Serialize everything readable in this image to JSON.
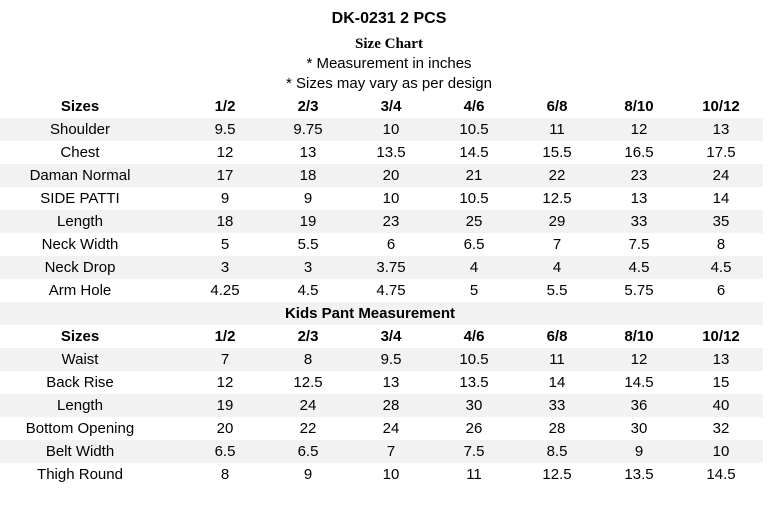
{
  "header": {
    "title": "DK-0231 2 PCS",
    "subtitle": "Size Chart",
    "notes": [
      "* Measurement in inches",
      "* Sizes may vary as per design"
    ]
  },
  "table": {
    "header": [
      "Sizes",
      "1/2",
      "2/3",
      "3/4",
      "4/6",
      "6/8",
      "8/10",
      "10/12"
    ],
    "rows": [
      [
        "Shoulder",
        "9.5",
        "9.75",
        "10",
        "10.5",
        "11",
        "12",
        "13"
      ],
      [
        "Chest",
        "12",
        "13",
        "13.5",
        "14.5",
        "15.5",
        "16.5",
        "17.5"
      ],
      [
        "Daman Normal",
        "17",
        "18",
        "20",
        "21",
        "22",
        "23",
        "24"
      ],
      [
        "SIDE PATTI",
        "9",
        "9",
        "10",
        "10.5",
        "12.5",
        "13",
        "14"
      ],
      [
        "Length",
        "18",
        "19",
        "23",
        "25",
        "29",
        "33",
        "35"
      ],
      [
        "Neck Width",
        "5",
        "5.5",
        "6",
        "6.5",
        "7",
        "7.5",
        "8"
      ],
      [
        "Neck Drop",
        "3",
        "3",
        "3.75",
        "4",
        "4",
        "4.5",
        "4.5"
      ],
      [
        "Arm Hole",
        "4.25",
        "4.5",
        "4.75",
        "5",
        "5.5",
        "5.75",
        "6"
      ]
    ]
  },
  "pant_table": {
    "title": "Kids Pant Measurement",
    "header": [
      "Sizes",
      "1/2",
      "2/3",
      "3/4",
      "4/6",
      "6/8",
      "8/10",
      "10/12"
    ],
    "rows": [
      [
        "Waist",
        "7",
        "8",
        "9.5",
        "10.5",
        "11",
        "12",
        "13"
      ],
      [
        "Back Rise",
        "12",
        "12.5",
        "13",
        "13.5",
        "14",
        "14.5",
        "15"
      ],
      [
        "Length",
        "19",
        "24",
        "28",
        "30",
        "33",
        "36",
        "40"
      ],
      [
        "Bottom Opening",
        "20",
        "22",
        "24",
        "26",
        "28",
        "30",
        "32"
      ],
      [
        "Belt Width",
        "6.5",
        "6.5",
        "7",
        "7.5",
        "8.5",
        "9",
        "10"
      ],
      [
        "Thigh Round",
        "8",
        "9",
        "10",
        "11",
        "12.5",
        "13.5",
        "14.5"
      ]
    ]
  }
}
